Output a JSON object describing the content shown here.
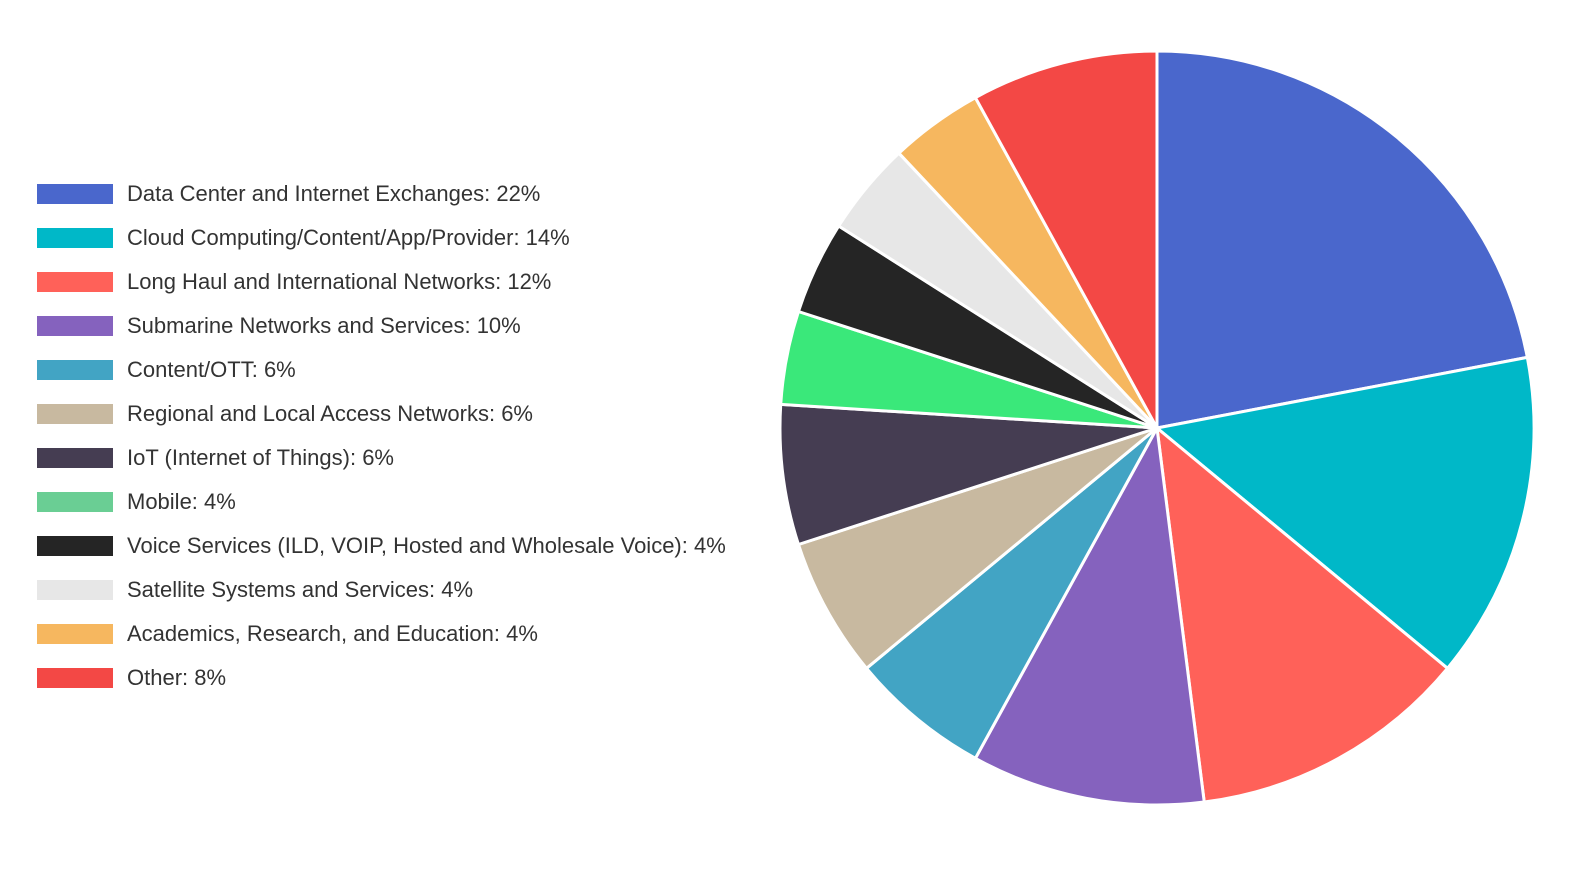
{
  "chart_data": {
    "type": "pie",
    "title": "",
    "legend_position": "left",
    "slices": [
      {
        "label": "Data Center and Internet Exchanges: 22%",
        "value": 22,
        "color": "#4A67CC"
      },
      {
        "label": "Cloud Computing/Content/App/Provider: 14%",
        "value": 14,
        "color": "#00B8C8"
      },
      {
        "label": "Long Haul and International Networks: 12%",
        "value": 12,
        "color": "#FF6159"
      },
      {
        "label": "Submarine Networks and Services: 10%",
        "value": 10,
        "color": "#8562BE"
      },
      {
        "label": "Content/OTT: 6%",
        "value": 6,
        "color": "#42A4C4"
      },
      {
        "label": "Regional and Local Access Networks: 6%",
        "value": 6,
        "color": "#C8B9A0"
      },
      {
        "label": "IoT (Internet of Things): 6%",
        "value": 6,
        "color": "#453D52"
      },
      {
        "label": "Mobile: 4%",
        "value": 4,
        "color": "#6ACE94",
        "slice_color": "#3AE87A"
      },
      {
        "label": "Voice Services (ILD, VOIP, Hosted and Wholesale Voice): 4%",
        "value": 4,
        "color": "#252525"
      },
      {
        "label": "Satellite Systems and Services: 4%",
        "value": 4,
        "color": "#E7E7E7"
      },
      {
        "label": "Academics, Research, and Education: 4%",
        "value": 4,
        "color": "#F6B75F"
      },
      {
        "label": "Other: 8%",
        "value": 8,
        "color": "#F34845"
      }
    ]
  }
}
